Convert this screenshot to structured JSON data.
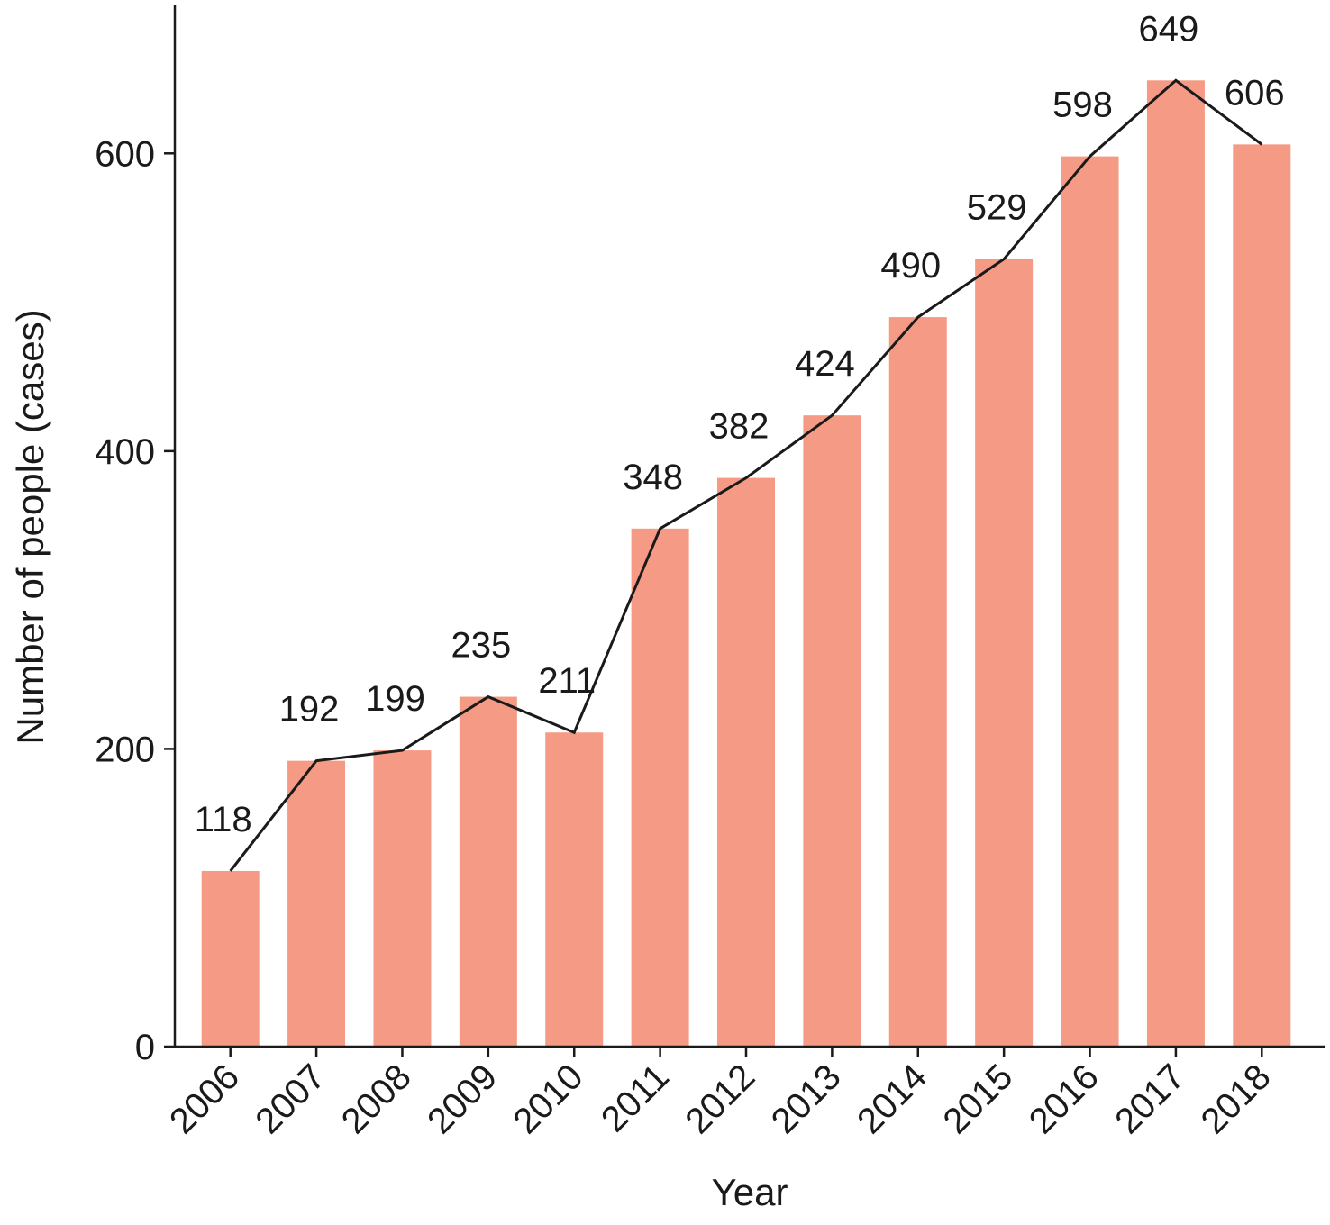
{
  "chart_data": {
    "type": "bar",
    "categories": [
      "2006",
      "2007",
      "2008",
      "2009",
      "2010",
      "2011",
      "2012",
      "2013",
      "2014",
      "2015",
      "2016",
      "2017",
      "2018"
    ],
    "values": [
      118,
      192,
      199,
      235,
      211,
      348,
      382,
      424,
      490,
      529,
      598,
      649,
      606
    ],
    "data_labels": [
      "118",
      "192",
      "199",
      "235",
      "211",
      "348",
      "382",
      "424",
      "490",
      "529",
      "598",
      "649",
      "606"
    ],
    "overlay_line": true,
    "xlabel": "Year",
    "ylabel": "Number of people (cases)",
    "ylim": [
      0,
      700
    ],
    "yticks": [
      0,
      200,
      400,
      600
    ],
    "ytick_labels": [
      "0",
      "200",
      "400",
      "600"
    ],
    "grid": false,
    "colors": {
      "bar": "#f59a84",
      "line": "#1a1a1a"
    }
  }
}
